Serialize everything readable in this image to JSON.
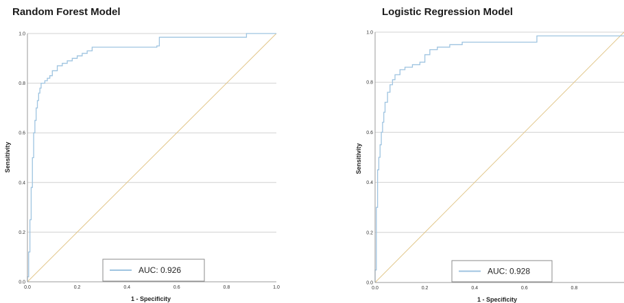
{
  "colors": {
    "roc": "#9dc3e0",
    "reference": "#e2c78a",
    "grid": "#d0d0d0",
    "axis": "#999999"
  },
  "chart_data": [
    {
      "type": "line",
      "title": "Random Forest Model",
      "xlabel": "1 - Specificity",
      "ylabel": "Sensitivity",
      "xlim": [
        0,
        1
      ],
      "ylim": [
        0,
        1
      ],
      "grid": true,
      "legend_position": "bottom-center",
      "x_ticks": [
        "0.0",
        "0.2",
        "0.4",
        "0.6",
        "0.8",
        "1.0"
      ],
      "y_ticks": [
        "0.0",
        "0.2",
        "0.4",
        "0.6",
        "0.8",
        "1.0"
      ],
      "legend_label": "AUC: 0.926",
      "series": [
        {
          "name": "AUC: 0.926",
          "x": [
            0,
            0,
            0.005,
            0.01,
            0.015,
            0.02,
            0.025,
            0.03,
            0.035,
            0.04,
            0.045,
            0.05,
            0.055,
            0.06,
            0.065,
            0.07,
            0.08,
            0.09,
            0.1,
            0.12,
            0.14,
            0.16,
            0.18,
            0.2,
            0.22,
            0.24,
            0.26,
            0.3,
            0.4,
            0.52,
            0.53,
            0.6,
            0.7,
            0.8,
            0.86,
            0.88,
            1.0
          ],
          "y": [
            0,
            0.02,
            0.12,
            0.25,
            0.38,
            0.5,
            0.6,
            0.65,
            0.7,
            0.73,
            0.76,
            0.78,
            0.8,
            0.8,
            0.8,
            0.81,
            0.82,
            0.83,
            0.85,
            0.87,
            0.88,
            0.89,
            0.9,
            0.91,
            0.92,
            0.93,
            0.945,
            0.945,
            0.945,
            0.95,
            0.985,
            0.985,
            0.985,
            0.985,
            0.985,
            1.0,
            1.0
          ]
        },
        {
          "x": [
            0,
            1
          ],
          "y": [
            0,
            1
          ]
        }
      ]
    },
    {
      "type": "line",
      "title": "Logistic Regression Model",
      "xlabel": "1 - Specificity",
      "ylabel": "Sensitivity",
      "xlim": [
        0,
        1
      ],
      "ylim": [
        0,
        1
      ],
      "grid": true,
      "legend_position": "bottom-center",
      "x_ticks": [
        "0.0",
        "0.2",
        "0.4",
        "0.6",
        "0.8"
      ],
      "y_ticks": [
        "0.0",
        "0.2",
        "0.4",
        "0.6",
        "0.8",
        "1.0"
      ],
      "legend_label": "AUC: 0.928",
      "series": [
        {
          "name": "AUC: 0.928",
          "x": [
            0,
            0,
            0.005,
            0.01,
            0.015,
            0.02,
            0.025,
            0.03,
            0.035,
            0.04,
            0.05,
            0.06,
            0.07,
            0.08,
            0.1,
            0.12,
            0.15,
            0.18,
            0.2,
            0.22,
            0.25,
            0.3,
            0.35,
            0.4,
            0.5,
            0.6,
            0.65,
            0.7,
            0.8,
            0.9,
            1.0
          ],
          "y": [
            0,
            0.05,
            0.3,
            0.45,
            0.5,
            0.55,
            0.6,
            0.64,
            0.68,
            0.72,
            0.76,
            0.79,
            0.81,
            0.83,
            0.85,
            0.86,
            0.87,
            0.88,
            0.91,
            0.93,
            0.94,
            0.95,
            0.96,
            0.96,
            0.96,
            0.96,
            0.985,
            0.985,
            0.985,
            0.985,
            0.985
          ]
        },
        {
          "x": [
            0,
            1
          ],
          "y": [
            0,
            1
          ]
        }
      ]
    }
  ]
}
